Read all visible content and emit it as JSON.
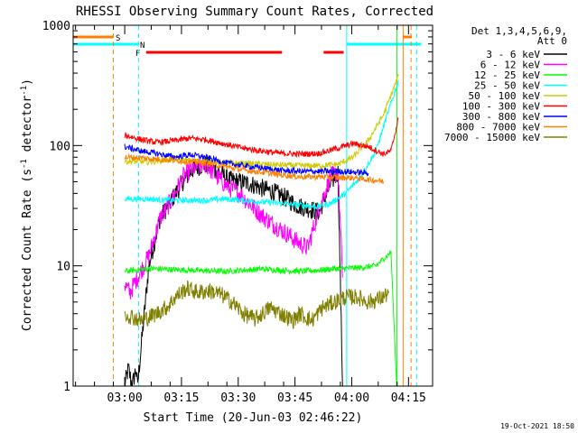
{
  "chart_data": {
    "type": "line",
    "title": "RHESSI Observing Summary Count Rates, Corrected",
    "xlabel": "Start Time (20-Jun-03 02:46:22)",
    "ylabel": "Corrected Count Rate (s⁻¹ detector⁻¹)",
    "ylabel_parts": [
      "Corrected Count Rate (s",
      "-1",
      " detector",
      "-1",
      ")"
    ],
    "y_scale": "log",
    "ylim": [
      1,
      1000
    ],
    "y_ticks": [
      1,
      10,
      100,
      1000
    ],
    "y_tick_labels": [
      "1",
      "10",
      "100",
      "1000"
    ],
    "x_unit": "minutes after 02:46:22",
    "xlim": [
      0,
      95
    ],
    "x_ticks": [
      13.63,
      28.63,
      43.63,
      58.63,
      73.63,
      88.63
    ],
    "x_tick_labels": [
      "03:00",
      "03:15",
      "03:30",
      "03:45",
      "04:00",
      "04:15"
    ],
    "grid": false,
    "legend_position": "right",
    "legend_header": [
      "Det 1,3,4,5,6,9,",
      "Att 0"
    ],
    "timestamp": "19-Oct-2021 18:50",
    "series": [
      {
        "name": "3 - 6 keV",
        "color": "#000000",
        "x": [
          13.6,
          14.6,
          15.6,
          16.6,
          17.0,
          20,
          23,
          26,
          29,
          32,
          35,
          38,
          41,
          44,
          47,
          50,
          53,
          56,
          59,
          62,
          65,
          68,
          70,
          71.2
        ],
        "y": [
          1,
          1.4,
          1,
          1.4,
          1,
          10,
          25,
          35,
          50,
          65,
          70,
          62,
          52,
          50,
          48,
          44,
          41,
          37,
          32,
          30,
          28,
          48,
          60,
          1
        ]
      },
      {
        "name": "6 - 12 keV",
        "color": "#ff00ff",
        "x": [
          13.6,
          15,
          17,
          20,
          23,
          26,
          29,
          32,
          35,
          38,
          41,
          44,
          47,
          50,
          53,
          56,
          59,
          62,
          65,
          68,
          70,
          71.2
        ],
        "y": [
          7,
          6,
          8,
          12,
          25,
          35,
          55,
          65,
          70,
          55,
          45,
          40,
          32,
          26,
          22,
          19,
          16,
          14,
          30,
          55,
          60,
          8
        ]
      },
      {
        "name": "12 - 25 keV",
        "color": "#00ff00",
        "x": [
          13.6,
          20,
          30,
          40,
          50,
          60,
          65,
          70,
          75,
          80,
          84,
          85.5
        ],
        "y": [
          9,
          9.5,
          9.2,
          9,
          9.4,
          9,
          9.2,
          9.5,
          9.6,
          10,
          13,
          1
        ]
      },
      {
        "name": "25 - 50 keV",
        "color": "#00ffff",
        "x": [
          13.6,
          20,
          25,
          30,
          35,
          40,
          45,
          50,
          55,
          60,
          65,
          68,
          72,
          76,
          80,
          83,
          86
        ],
        "y": [
          36,
          36,
          35,
          35,
          35,
          36,
          35,
          34,
          33,
          32,
          31,
          33,
          40,
          55,
          90,
          180,
          350
        ]
      },
      {
        "name": "50 - 100 keV",
        "color": "#cccc00",
        "x": [
          13.6,
          20,
          25,
          30,
          35,
          40,
          45,
          50,
          55,
          60,
          65,
          70,
          74,
          78,
          82,
          86
        ],
        "y": [
          74,
          73,
          76,
          75,
          74,
          72,
          71,
          70,
          69,
          68,
          68,
          70,
          80,
          110,
          180,
          380
        ]
      },
      {
        "name": "100 - 300 keV",
        "color": "#ff0000",
        "x": [
          13.6,
          18,
          22,
          27,
          31,
          35,
          40,
          45,
          50,
          55,
          60,
          65,
          70,
          74,
          78,
          82,
          84,
          86
        ],
        "y": [
          122,
          112,
          106,
          110,
          115,
          112,
          103,
          95,
          90,
          86,
          85,
          86,
          95,
          104,
          98,
          85,
          90,
          170
        ]
      },
      {
        "name": "300 - 800 keV",
        "color": "#0000ff",
        "x": [
          13.6,
          18,
          22,
          27,
          31,
          35,
          40,
          45,
          50,
          55,
          60,
          65,
          70,
          75,
          78
        ],
        "y": [
          98,
          90,
          86,
          80,
          84,
          80,
          72,
          68,
          65,
          62,
          61,
          61,
          61,
          60,
          59
        ]
      },
      {
        "name": "800 - 7000 keV",
        "color": "#ff8000",
        "x": [
          13.6,
          18,
          22,
          26,
          30,
          34,
          38,
          42,
          46,
          50,
          55,
          60,
          65,
          70,
          74,
          78,
          81,
          82
        ],
        "y": [
          80,
          79,
          77,
          76,
          74,
          72,
          69,
          65,
          62,
          60,
          57,
          55,
          55,
          54,
          54,
          52,
          51,
          50
        ]
      },
      {
        "name": "7000 - 15000 keV",
        "color": "#808000",
        "x": [
          13.6,
          18,
          22,
          25,
          27,
          30,
          33,
          36,
          39,
          42,
          45,
          48,
          50,
          52,
          55,
          58,
          60,
          63,
          66,
          69,
          72,
          75,
          78,
          80,
          82,
          83.5
        ],
        "y": [
          4,
          3.5,
          4,
          4.6,
          5.5,
          6.5,
          6,
          6.2,
          5.8,
          5,
          4,
          3.6,
          4,
          4.5,
          4,
          3.5,
          4,
          3.5,
          4.5,
          5,
          5.5,
          5.5,
          5,
          5.2,
          5.5,
          6
        ]
      }
    ],
    "state_bars": [
      {
        "label": "S",
        "color": "#ff8000",
        "segments": [
          [
            0,
            10.5
          ],
          [
            87.2,
            89.5
          ]
        ]
      },
      {
        "label": "N",
        "color": "#00ffff",
        "segments": [
          [
            0,
            17.2
          ],
          [
            72.3,
            92
          ]
        ]
      },
      {
        "label": "F",
        "color": "#ff0000",
        "segments": [
          [
            19.3,
            55.2
          ],
          [
            66.2,
            71.5
          ]
        ]
      }
    ],
    "vertical_lines": [
      {
        "x": 10.6,
        "color": "#ff8000",
        "dashed": true
      },
      {
        "x": 17.3,
        "color": "#00ffff",
        "dashed": true
      },
      {
        "x": 72.3,
        "color": "#00ffff",
        "dashed": false
      },
      {
        "x": 85.6,
        "color": "#00ff00",
        "dashed": false
      },
      {
        "x": 87.2,
        "color": "#ff8000",
        "dashed": false
      },
      {
        "x": 89.3,
        "color": "#ff8000",
        "dashed": true
      },
      {
        "x": 90.8,
        "color": "#00ffff",
        "dashed": true
      }
    ]
  }
}
